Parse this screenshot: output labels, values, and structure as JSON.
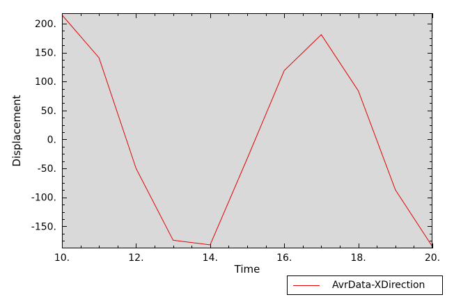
{
  "chart_data": {
    "type": "line",
    "xlabel": "Time",
    "ylabel": "Displacement",
    "xlim": [
      10,
      20
    ],
    "ylim": [
      -188,
      218
    ],
    "xticks": [
      10,
      12,
      14,
      16,
      18,
      20
    ],
    "xtick_labels": [
      "10.",
      "12.",
      "14.",
      "16.",
      "18.",
      "20."
    ],
    "yticks": [
      200,
      150,
      100,
      50,
      0,
      -50,
      -100,
      -150
    ],
    "ytick_labels": [
      "200.",
      "150.",
      "100.",
      "50.",
      "0.",
      "-50.",
      "-100.",
      "-150."
    ],
    "grid": false,
    "legend_position": "bottom-right",
    "background_color": "#d9d9d9",
    "series": [
      {
        "name": "AvrData-XDirection",
        "color": "#e00000",
        "x": [
          10,
          11,
          12,
          13,
          14,
          15,
          16,
          17,
          18,
          19,
          20
        ],
        "y": [
          215,
          141,
          -50,
          -174,
          -182,
          -33,
          119,
          181,
          84,
          -87,
          -185
        ]
      }
    ]
  }
}
